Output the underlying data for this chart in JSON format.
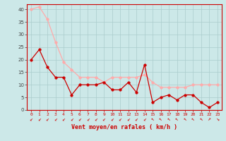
{
  "x": [
    0,
    1,
    2,
    3,
    4,
    5,
    6,
    7,
    8,
    9,
    10,
    11,
    12,
    13,
    14,
    15,
    16,
    17,
    18,
    19,
    20,
    21,
    22,
    23
  ],
  "vent_moyen": [
    20,
    24,
    17,
    13,
    13,
    6,
    10,
    10,
    10,
    11,
    8,
    8,
    11,
    7,
    18,
    3,
    5,
    6,
    4,
    6,
    6,
    3,
    1,
    3
  ],
  "rafales": [
    40,
    41,
    36,
    27,
    19,
    16,
    13,
    13,
    13,
    11,
    13,
    13,
    13,
    13,
    14,
    11,
    9,
    9,
    9,
    9,
    10,
    10,
    10,
    10
  ],
  "wind_angles": [
    225,
    225,
    225,
    225,
    225,
    225,
    225,
    225,
    225,
    225,
    225,
    225,
    225,
    225,
    225,
    315,
    315,
    315,
    315,
    315,
    315,
    315,
    45,
    135
  ],
  "xlabel": "Vent moyen/en rafales ( km/h )",
  "ylim": [
    0,
    42
  ],
  "xlim": [
    -0.5,
    23.5
  ],
  "yticks": [
    0,
    5,
    10,
    15,
    20,
    25,
    30,
    35,
    40
  ],
  "bg_color": "#cce8e8",
  "grid_color": "#aacccc",
  "line_color_moyen": "#cc0000",
  "line_color_rafales": "#ffaaaa",
  "marker_size": 2.5,
  "xlabel_color": "#cc0000",
  "tick_color": "#cc0000",
  "ytick_color": "#444444",
  "spine_color": "#cc0000"
}
